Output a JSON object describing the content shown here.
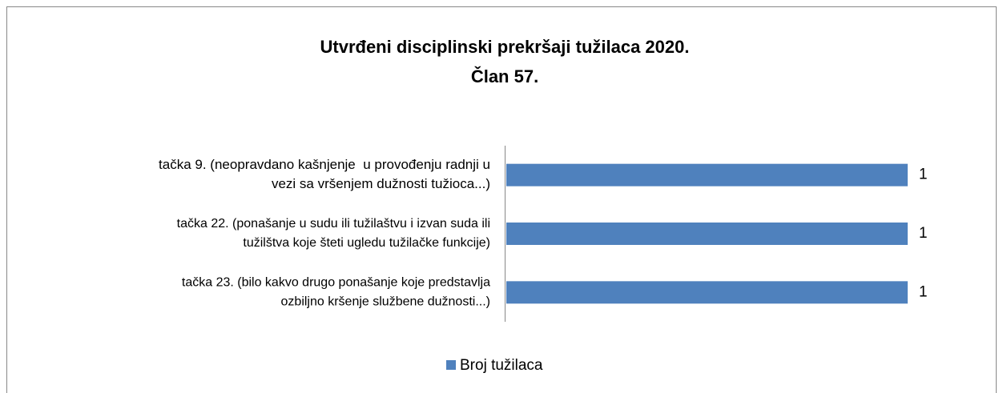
{
  "chart_data": {
    "type": "bar",
    "orientation": "horizontal",
    "title": [
      "Utvrđeni disciplinski prekršaji tužilaca 2020.",
      "Član 57."
    ],
    "categories": [
      [
        "tačka 9. (neopravdano kašnjenje  u provođenju radnji u",
        "vezi sa vršenjem dužnosti tužioca...)"
      ],
      [
        "tačka 22. (ponašanje u sudu ili tužilaštvu i izvan suda ili",
        "tužilštva koje šteti ugledu tužilačke funkcije)"
      ],
      [
        "tačka 23. (bilo kakvo drugo ponašanje koje predstavlja",
        "ozbiljno kršenje službene dužnosti...)"
      ]
    ],
    "series": [
      {
        "name": "Broj tužilaca",
        "color": "#4f81bd",
        "values": [
          1,
          1,
          1
        ]
      }
    ],
    "xlim": [
      0,
      1
    ],
    "legend": "bottom"
  }
}
